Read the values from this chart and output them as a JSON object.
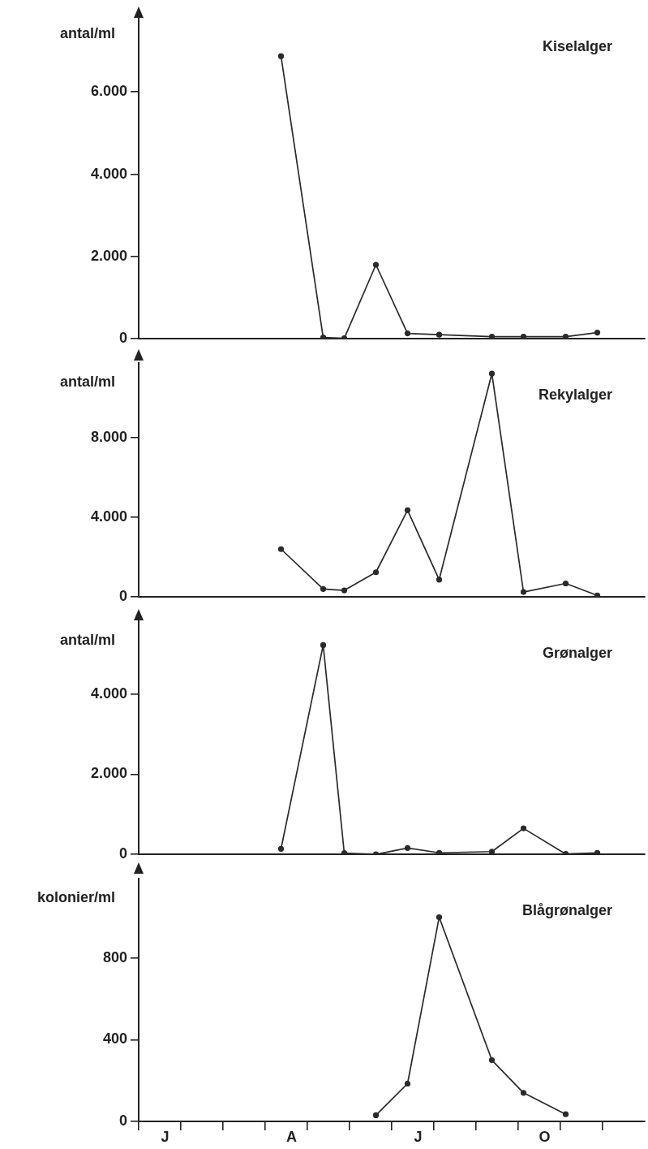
{
  "chart_data": [
    {
      "type": "line",
      "title": "Kiselalger",
      "ylabel": "antal/ml",
      "color": "#2a2a2a",
      "marker": "circle",
      "legend": false,
      "grid": false,
      "tick_labels": "y",
      "categories": [
        null,
        null,
        null,
        null,
        null,
        null,
        null,
        null,
        null,
        null,
        null,
        null,
        null,
        null,
        null,
        null,
        null,
        null,
        null,
        null,
        null,
        null,
        null,
        null,
        null,
        null,
        null,
        null,
        null,
        null,
        null,
        null,
        null,
        null,
        null,
        null,
        null,
        null,
        null,
        null,
        null,
        null,
        null,
        null,
        null,
        null,
        null,
        null
      ],
      "values": [
        null,
        null,
        null,
        null,
        null,
        null,
        null,
        null,
        null,
        null,
        null,
        null,
        null,
        6870,
        null,
        null,
        null,
        30,
        null,
        10,
        null,
        null,
        1800,
        null,
        null,
        130,
        null,
        null,
        100,
        null,
        null,
        null,
        null,
        50,
        null,
        null,
        50,
        null,
        null,
        null,
        50,
        null,
        null,
        150,
        null,
        null,
        null,
        null
      ],
      "ylim": [
        0,
        7880
      ],
      "yticks": [
        0,
        {
          "value": 2000,
          "label": "2.000"
        },
        {
          "value": 4000,
          "label": "4.000"
        },
        {
          "value": 6000,
          "label": "6.000"
        }
      ]
    },
    {
      "type": "line",
      "title": "Rekylalger",
      "ylabel": "antal/ml",
      "color": "#2a2a2a",
      "marker": "circle",
      "legend": false,
      "grid": false,
      "tick_labels": "y",
      "categories": [
        null,
        null,
        null,
        null,
        null,
        null,
        null,
        null,
        null,
        null,
        null,
        null,
        null,
        null,
        null,
        null,
        null,
        null,
        null,
        null,
        null,
        null,
        null,
        null,
        null,
        null,
        null,
        null,
        null,
        null,
        null,
        null,
        null,
        null,
        null,
        null,
        null,
        null,
        null,
        null,
        null,
        null,
        null,
        null,
        null,
        null,
        null,
        null
      ],
      "values": [
        null,
        null,
        null,
        null,
        null,
        null,
        null,
        null,
        null,
        null,
        null,
        null,
        null,
        2400,
        null,
        null,
        null,
        400,
        null,
        330,
        null,
        null,
        1240,
        null,
        null,
        4350,
        null,
        null,
        870,
        null,
        null,
        null,
        null,
        11200,
        null,
        null,
        250,
        null,
        null,
        null,
        680,
        null,
        null,
        80,
        null,
        null,
        null,
        null
      ],
      "ylim": [
        0,
        11740
      ],
      "yticks": [
        0,
        {
          "value": 4000,
          "label": "4.000"
        },
        {
          "value": 8000,
          "label": "8.000"
        }
      ]
    },
    {
      "type": "line",
      "title": "Grønalger",
      "ylabel": "antal/ml",
      "color": "#2a2a2a",
      "marker": "circle",
      "legend": false,
      "grid": false,
      "tick_labels": "y",
      "categories": [
        null,
        null,
        null,
        null,
        null,
        null,
        null,
        null,
        null,
        null,
        null,
        null,
        null,
        null,
        null,
        null,
        null,
        null,
        null,
        null,
        null,
        null,
        null,
        null,
        null,
        null,
        null,
        null,
        null,
        null,
        null,
        null,
        null,
        null,
        null,
        null,
        null,
        null,
        null,
        null,
        null,
        null,
        null,
        null,
        null,
        null,
        null,
        null
      ],
      "values": [
        null,
        null,
        null,
        null,
        null,
        null,
        null,
        null,
        null,
        null,
        null,
        null,
        null,
        140,
        null,
        null,
        null,
        5220,
        null,
        30,
        null,
        null,
        0,
        null,
        null,
        160,
        null,
        null,
        40,
        null,
        null,
        null,
        null,
        70,
        null,
        null,
        650,
        null,
        null,
        null,
        10,
        null,
        null,
        40,
        null,
        null,
        null,
        null
      ],
      "ylim": [
        0,
        5820
      ],
      "yticks": [
        0,
        {
          "value": 2000,
          "label": "2.000"
        },
        {
          "value": 4000,
          "label": "4.000"
        }
      ]
    },
    {
      "type": "line",
      "title": "Blågrønalger",
      "ylabel": "kolonier/ml",
      "color": "#2a2a2a",
      "marker": "circle",
      "legend": false,
      "grid": false,
      "categories": [
        null,
        null,
        "J",
        null,
        null,
        null,
        null,
        null,
        null,
        null,
        null,
        null,
        null,
        null,
        "A",
        null,
        null,
        null,
        null,
        null,
        null,
        null,
        null,
        null,
        null,
        null,
        "J",
        null,
        null,
        null,
        null,
        null,
        null,
        null,
        null,
        null,
        null,
        null,
        "O",
        null,
        null,
        null,
        null,
        null,
        null,
        null,
        null,
        null
      ],
      "values": [
        null,
        null,
        null,
        null,
        null,
        null,
        null,
        null,
        null,
        null,
        null,
        null,
        null,
        null,
        null,
        null,
        null,
        null,
        null,
        null,
        null,
        null,
        30,
        null,
        null,
        185,
        null,
        null,
        1000,
        null,
        null,
        null,
        null,
        300,
        null,
        null,
        140,
        null,
        null,
        null,
        35,
        null,
        null,
        null,
        null,
        null,
        null,
        null
      ],
      "ylim": [
        0,
        1190
      ],
      "yticks": [
        0,
        400,
        800
      ]
    }
  ]
}
